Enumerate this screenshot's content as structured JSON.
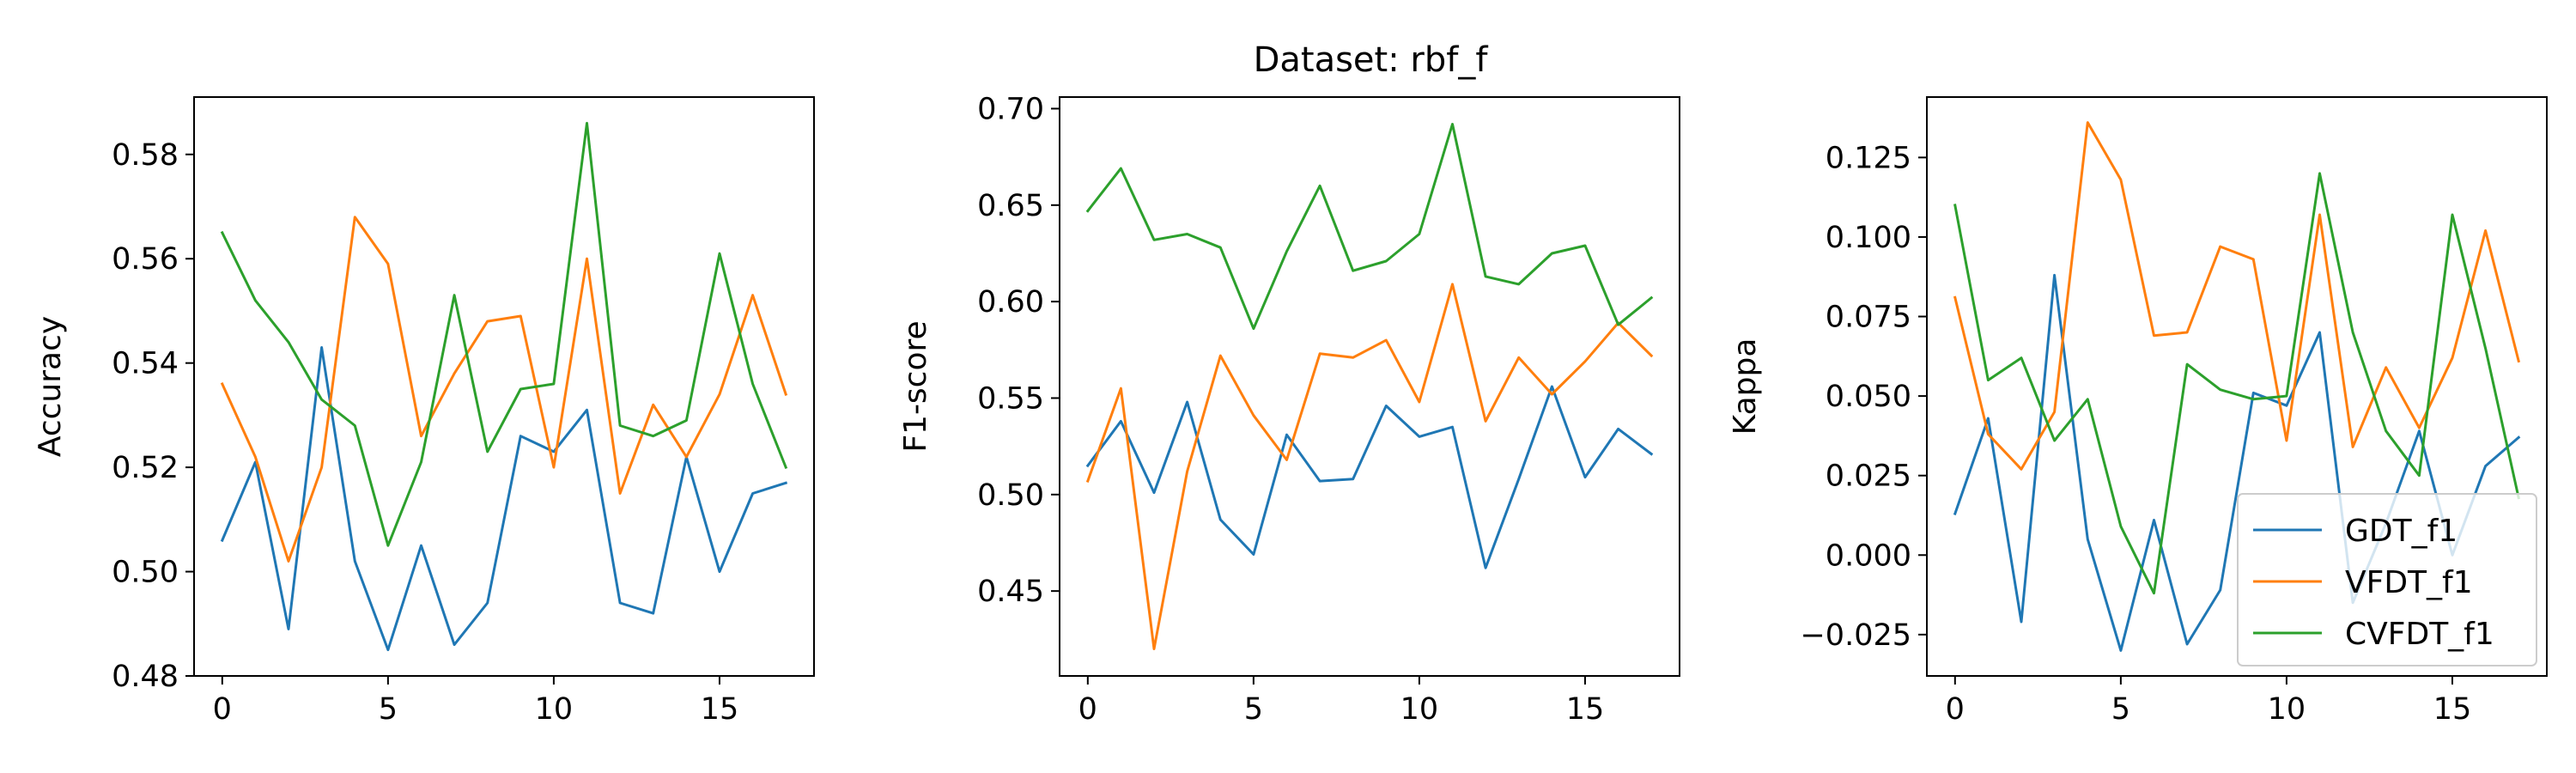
{
  "figure": {
    "title": "Dataset: rbf_f"
  },
  "chart_data": [
    {
      "type": "line",
      "title": "",
      "xlabel": "",
      "ylabel": "Accuracy",
      "x": [
        0,
        1,
        2,
        3,
        4,
        5,
        6,
        7,
        8,
        9,
        10,
        11,
        12,
        13,
        14,
        15,
        16,
        17
      ],
      "xlim": [
        -0.85,
        17.85
      ],
      "ylim": [
        0.48,
        0.591
      ],
      "xticks": [
        0,
        5,
        10,
        15
      ],
      "yticks": [
        0.48,
        0.5,
        0.52,
        0.54,
        0.56,
        0.58
      ],
      "xtick_labels": [
        "0",
        "5",
        "10",
        "15"
      ],
      "ytick_labels": [
        "0.48",
        "0.50",
        "0.52",
        "0.54",
        "0.56",
        "0.58"
      ],
      "grid": false,
      "series": [
        {
          "name": "GDT_f1",
          "color": "#1f77b4",
          "values": [
            0.506,
            0.521,
            0.489,
            0.543,
            0.502,
            0.485,
            0.505,
            0.486,
            0.494,
            0.526,
            0.523,
            0.531,
            0.494,
            0.492,
            0.522,
            0.5,
            0.515,
            0.517
          ]
        },
        {
          "name": "VFDT_f1",
          "color": "#ff7f0e",
          "values": [
            0.536,
            0.522,
            0.502,
            0.52,
            0.568,
            0.559,
            0.526,
            0.538,
            0.548,
            0.549,
            0.52,
            0.56,
            0.515,
            0.532,
            0.522,
            0.534,
            0.553,
            0.534
          ]
        },
        {
          "name": "CVFDT_f1",
          "color": "#2ca02c",
          "values": [
            0.565,
            0.552,
            0.544,
            0.533,
            0.528,
            0.505,
            0.521,
            0.553,
            0.523,
            0.535,
            0.536,
            0.586,
            0.528,
            0.526,
            0.529,
            0.561,
            0.536,
            0.52
          ]
        }
      ]
    },
    {
      "type": "line",
      "title": "Dataset: rbf_f",
      "xlabel": "",
      "ylabel": "F1-score",
      "x": [
        0,
        1,
        2,
        3,
        4,
        5,
        6,
        7,
        8,
        9,
        10,
        11,
        12,
        13,
        14,
        15,
        16,
        17
      ],
      "xlim": [
        -0.85,
        17.85
      ],
      "ylim": [
        0.406,
        0.706
      ],
      "xticks": [
        0,
        5,
        10,
        15
      ],
      "yticks": [
        0.45,
        0.5,
        0.55,
        0.6,
        0.65,
        0.7
      ],
      "xtick_labels": [
        "0",
        "5",
        "10",
        "15"
      ],
      "ytick_labels": [
        "0.45",
        "0.50",
        "0.55",
        "0.60",
        "0.65",
        "0.70"
      ],
      "grid": false,
      "series": [
        {
          "name": "GDT_f1",
          "color": "#1f77b4",
          "values": [
            0.515,
            0.538,
            0.501,
            0.548,
            0.487,
            0.469,
            0.531,
            0.507,
            0.508,
            0.546,
            0.53,
            0.535,
            0.462,
            0.508,
            0.556,
            0.509,
            0.534,
            0.521
          ]
        },
        {
          "name": "VFDT_f1",
          "color": "#ff7f0e",
          "values": [
            0.507,
            0.555,
            0.42,
            0.512,
            0.572,
            0.541,
            0.518,
            0.573,
            0.571,
            0.58,
            0.548,
            0.609,
            0.538,
            0.571,
            0.552,
            0.569,
            0.589,
            0.572
          ]
        },
        {
          "name": "CVFDT_f1",
          "color": "#2ca02c",
          "values": [
            0.647,
            0.669,
            0.632,
            0.635,
            0.628,
            0.586,
            0.626,
            0.66,
            0.616,
            0.621,
            0.635,
            0.692,
            0.613,
            0.609,
            0.625,
            0.629,
            0.588,
            0.602
          ]
        }
      ]
    },
    {
      "type": "line",
      "title": "",
      "xlabel": "",
      "ylabel": "Kappa",
      "x": [
        0,
        1,
        2,
        3,
        4,
        5,
        6,
        7,
        8,
        9,
        10,
        11,
        12,
        13,
        14,
        15,
        16,
        17
      ],
      "xlim": [
        -0.85,
        17.85
      ],
      "ylim": [
        -0.038,
        0.144
      ],
      "xticks": [
        0,
        5,
        10,
        15
      ],
      "yticks": [
        -0.025,
        0.0,
        0.025,
        0.05,
        0.075,
        0.1,
        0.125
      ],
      "xtick_labels": [
        "0",
        "5",
        "10",
        "15"
      ],
      "ytick_labels": [
        "−0.025",
        "0.000",
        "0.025",
        "0.050",
        "0.075",
        "0.100",
        "0.125"
      ],
      "grid": false,
      "legend": {
        "location": "lower right",
        "entries": [
          "GDT_f1",
          "VFDT_f1",
          "CVFDT_f1"
        ]
      },
      "series": [
        {
          "name": "GDT_f1",
          "color": "#1f77b4",
          "values": [
            0.013,
            0.043,
            -0.021,
            0.088,
            0.005,
            -0.03,
            0.011,
            -0.028,
            -0.011,
            0.051,
            0.047,
            0.07,
            -0.015,
            0.01,
            0.039,
            0.0,
            0.028,
            0.037
          ]
        },
        {
          "name": "VFDT_f1",
          "color": "#ff7f0e",
          "values": [
            0.081,
            0.038,
            0.027,
            0.045,
            0.136,
            0.118,
            0.069,
            0.07,
            0.097,
            0.093,
            0.036,
            0.107,
            0.034,
            0.059,
            0.04,
            0.062,
            0.102,
            0.061
          ]
        },
        {
          "name": "CVFDT_f1",
          "color": "#2ca02c",
          "values": [
            0.11,
            0.055,
            0.062,
            0.036,
            0.049,
            0.009,
            -0.012,
            0.06,
            0.052,
            0.049,
            0.05,
            0.12,
            0.07,
            0.039,
            0.025,
            0.107,
            0.065,
            0.018
          ]
        }
      ]
    }
  ]
}
